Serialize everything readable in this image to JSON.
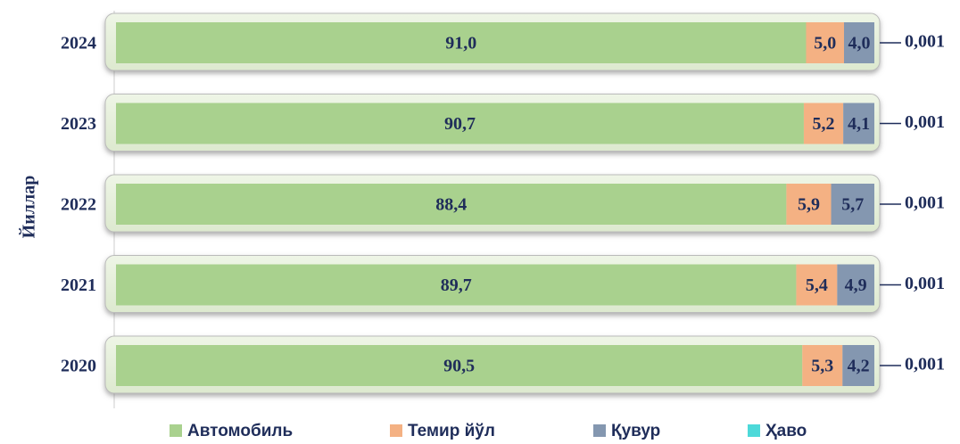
{
  "chart_data": {
    "type": "stacked-bar-horizontal",
    "y_label": "Йиллар",
    "categories": [
      "2024",
      "2023",
      "2022",
      "2021",
      "2020"
    ],
    "series": [
      {
        "name": "Автомобиль",
        "color": "#a9d18e",
        "values": [
          91.0,
          90.7,
          88.4,
          89.7,
          90.5
        ],
        "value_labels": [
          "91,0",
          "90,7",
          "88,4",
          "89,7",
          "90,5"
        ]
      },
      {
        "name": "Темир йўл",
        "color": "#f4b183",
        "values": [
          5.0,
          5.2,
          5.9,
          5.4,
          5.3
        ],
        "value_labels": [
          "5,0",
          "5,2",
          "5,9",
          "5,4",
          "5,3"
        ]
      },
      {
        "name": "Қувур",
        "color": "#8497b0",
        "values": [
          4.0,
          4.1,
          5.7,
          4.9,
          4.2
        ],
        "value_labels": [
          "4,0",
          "4,1",
          "5,7",
          "4,9",
          "4,2"
        ]
      },
      {
        "name": "Ҳаво",
        "color": "#4dd9d9",
        "values": [
          0.001,
          0.001,
          0.001,
          0.001,
          0.001
        ],
        "value_labels": [
          "0,001",
          "0,001",
          "0,001",
          "0,001",
          "0,001"
        ]
      }
    ],
    "legend": "bottom"
  }
}
